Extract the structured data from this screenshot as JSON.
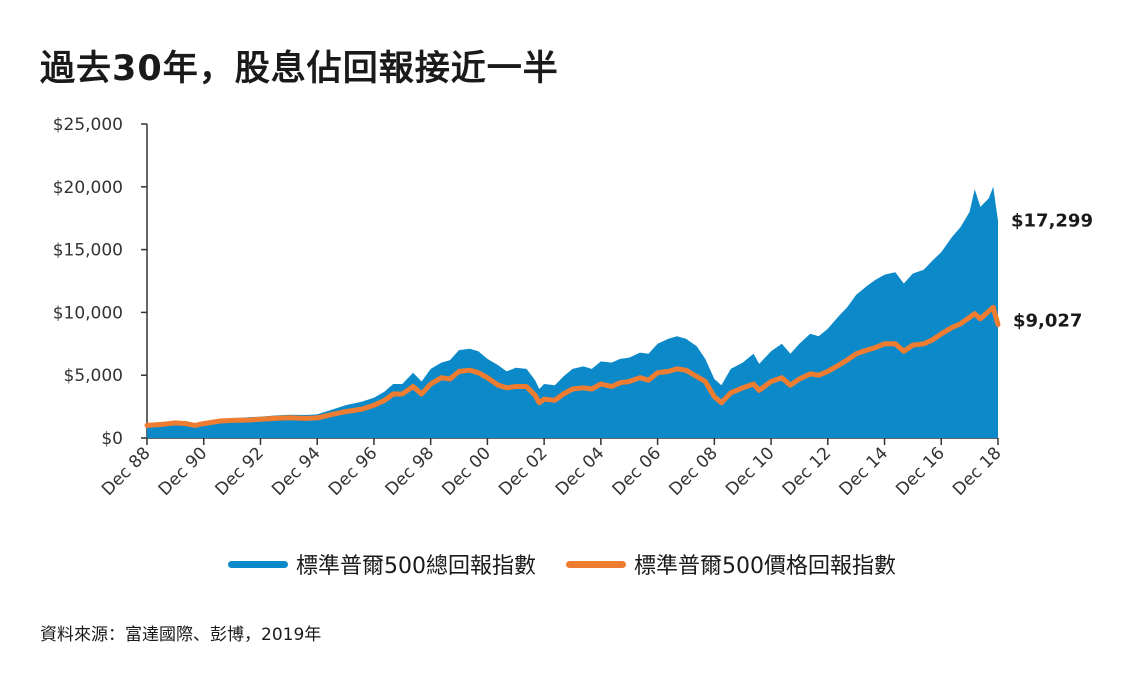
{
  "title": "過去30年，股息佔回報接近一半",
  "source": "資料來源：富達國際、彭博，2019年",
  "colors": {
    "total_return": "#0c89c9",
    "price_return": "#ee7d31",
    "axis": "#333333"
  },
  "legend": {
    "total_return": "標準普爾500總回報指數",
    "price_return": "標準普爾500價格回報指數"
  },
  "chart_data": {
    "type": "area",
    "xlim": [
      1988.92,
      2018.92
    ],
    "ylim": [
      0,
      25000
    ],
    "x_ticks": [
      {
        "label": "Dec 88",
        "value": 1988.92
      },
      {
        "label": "Dec 90",
        "value": 1990.92
      },
      {
        "label": "Dec 92",
        "value": 1992.92
      },
      {
        "label": "Dec 94",
        "value": 1994.92
      },
      {
        "label": "Dec 96",
        "value": 1996.92
      },
      {
        "label": "Dec 98",
        "value": 1998.92
      },
      {
        "label": "Dec 00",
        "value": 2000.92
      },
      {
        "label": "Dec 02",
        "value": 2002.92
      },
      {
        "label": "Dec 04",
        "value": 2004.92
      },
      {
        "label": "Dec 06",
        "value": 2006.92
      },
      {
        "label": "Dec 08",
        "value": 2008.92
      },
      {
        "label": "Dec 10",
        "value": 2010.92
      },
      {
        "label": "Dec 12",
        "value": 2012.92
      },
      {
        "label": "Dec 14",
        "value": 2014.92
      },
      {
        "label": "Dec 16",
        "value": 2016.92
      },
      {
        "label": "Dec 18",
        "value": 2018.92
      }
    ],
    "y_ticks": [
      {
        "label": "$0",
        "value": 0
      },
      {
        "label": "$5,000",
        "value": 5000
      },
      {
        "label": "$10,000",
        "value": 10000
      },
      {
        "label": "$15,000",
        "value": 15000
      },
      {
        "label": "$20,000",
        "value": 20000
      },
      {
        "label": "$25,000",
        "value": 25000
      }
    ],
    "series": [
      {
        "name": "標準普爾500總回報指數",
        "type": "area",
        "end_label": "$17,299",
        "points": [
          [
            1988.92,
            1000
          ],
          [
            1989.5,
            1150
          ],
          [
            1989.92,
            1300
          ],
          [
            1990.3,
            1250
          ],
          [
            1990.6,
            1080
          ],
          [
            1990.92,
            1250
          ],
          [
            1991.5,
            1500
          ],
          [
            1991.92,
            1580
          ],
          [
            1992.5,
            1650
          ],
          [
            1992.92,
            1700
          ],
          [
            1993.5,
            1800
          ],
          [
            1993.92,
            1850
          ],
          [
            1994.5,
            1830
          ],
          [
            1994.92,
            1880
          ],
          [
            1995.5,
            2300
          ],
          [
            1995.92,
            2600
          ],
          [
            1996.5,
            2900
          ],
          [
            1996.92,
            3200
          ],
          [
            1997.3,
            3700
          ],
          [
            1997.6,
            4300
          ],
          [
            1997.92,
            4300
          ],
          [
            1998.3,
            5200
          ],
          [
            1998.6,
            4500
          ],
          [
            1998.92,
            5500
          ],
          [
            1999.3,
            6000
          ],
          [
            1999.6,
            6200
          ],
          [
            1999.92,
            7000
          ],
          [
            2000.3,
            7100
          ],
          [
            2000.6,
            6900
          ],
          [
            2000.92,
            6300
          ],
          [
            2001.3,
            5800
          ],
          [
            2001.6,
            5300
          ],
          [
            2001.92,
            5600
          ],
          [
            2002.3,
            5500
          ],
          [
            2002.6,
            4600
          ],
          [
            2002.75,
            3900
          ],
          [
            2002.92,
            4300
          ],
          [
            2003.3,
            4200
          ],
          [
            2003.6,
            4900
          ],
          [
            2003.92,
            5500
          ],
          [
            2004.3,
            5700
          ],
          [
            2004.6,
            5500
          ],
          [
            2004.92,
            6100
          ],
          [
            2005.3,
            6000
          ],
          [
            2005.6,
            6300
          ],
          [
            2005.92,
            6400
          ],
          [
            2006.3,
            6800
          ],
          [
            2006.6,
            6700
          ],
          [
            2006.92,
            7500
          ],
          [
            2007.3,
            7900
          ],
          [
            2007.6,
            8100
          ],
          [
            2007.92,
            7900
          ],
          [
            2008.3,
            7300
          ],
          [
            2008.6,
            6300
          ],
          [
            2008.92,
            4700
          ],
          [
            2009.17,
            4200
          ],
          [
            2009.5,
            5500
          ],
          [
            2009.92,
            6000
          ],
          [
            2010.3,
            6700
          ],
          [
            2010.5,
            5900
          ],
          [
            2010.92,
            6900
          ],
          [
            2011.3,
            7500
          ],
          [
            2011.6,
            6700
          ],
          [
            2011.92,
            7500
          ],
          [
            2012.3,
            8300
          ],
          [
            2012.6,
            8100
          ],
          [
            2012.92,
            8700
          ],
          [
            2013.3,
            9700
          ],
          [
            2013.6,
            10400
          ],
          [
            2013.92,
            11400
          ],
          [
            2014.3,
            12100
          ],
          [
            2014.6,
            12600
          ],
          [
            2014.92,
            13000
          ],
          [
            2015.3,
            13200
          ],
          [
            2015.6,
            12300
          ],
          [
            2015.92,
            13100
          ],
          [
            2016.3,
            13400
          ],
          [
            2016.6,
            14100
          ],
          [
            2016.92,
            14800
          ],
          [
            2017.3,
            16000
          ],
          [
            2017.6,
            16800
          ],
          [
            2017.92,
            18000
          ],
          [
            2018.1,
            19800
          ],
          [
            2018.3,
            18400
          ],
          [
            2018.6,
            19100
          ],
          [
            2018.75,
            20000
          ],
          [
            2018.92,
            17299
          ]
        ]
      },
      {
        "name": "標準普爾500價格回報指數",
        "type": "line",
        "end_label": "$9,027",
        "points": [
          [
            1988.92,
            1000
          ],
          [
            1989.5,
            1100
          ],
          [
            1989.92,
            1200
          ],
          [
            1990.3,
            1150
          ],
          [
            1990.6,
            1000
          ],
          [
            1990.92,
            1150
          ],
          [
            1991.5,
            1350
          ],
          [
            1991.92,
            1400
          ],
          [
            1992.5,
            1430
          ],
          [
            1992.92,
            1500
          ],
          [
            1993.5,
            1580
          ],
          [
            1993.92,
            1620
          ],
          [
            1994.5,
            1560
          ],
          [
            1994.92,
            1600
          ],
          [
            1995.5,
            1900
          ],
          [
            1995.92,
            2100
          ],
          [
            1996.5,
            2300
          ],
          [
            1996.92,
            2600
          ],
          [
            1997.3,
            3000
          ],
          [
            1997.6,
            3500
          ],
          [
            1997.92,
            3500
          ],
          [
            1998.3,
            4100
          ],
          [
            1998.6,
            3500
          ],
          [
            1998.92,
            4300
          ],
          [
            1999.3,
            4800
          ],
          [
            1999.6,
            4700
          ],
          [
            1999.92,
            5300
          ],
          [
            2000.3,
            5400
          ],
          [
            2000.6,
            5200
          ],
          [
            2000.92,
            4800
          ],
          [
            2001.3,
            4200
          ],
          [
            2001.6,
            4000
          ],
          [
            2001.92,
            4100
          ],
          [
            2002.3,
            4100
          ],
          [
            2002.6,
            3400
          ],
          [
            2002.75,
            2800
          ],
          [
            2002.92,
            3100
          ],
          [
            2003.3,
            3000
          ],
          [
            2003.6,
            3500
          ],
          [
            2003.92,
            3900
          ],
          [
            2004.3,
            4000
          ],
          [
            2004.6,
            3900
          ],
          [
            2004.92,
            4300
          ],
          [
            2005.3,
            4100
          ],
          [
            2005.6,
            4400
          ],
          [
            2005.92,
            4500
          ],
          [
            2006.3,
            4800
          ],
          [
            2006.6,
            4600
          ],
          [
            2006.92,
            5200
          ],
          [
            2007.3,
            5300
          ],
          [
            2007.6,
            5500
          ],
          [
            2007.92,
            5400
          ],
          [
            2008.3,
            4900
          ],
          [
            2008.6,
            4500
          ],
          [
            2008.92,
            3300
          ],
          [
            2009.17,
            2800
          ],
          [
            2009.5,
            3600
          ],
          [
            2009.92,
            4000
          ],
          [
            2010.3,
            4300
          ],
          [
            2010.5,
            3800
          ],
          [
            2010.92,
            4500
          ],
          [
            2011.3,
            4800
          ],
          [
            2011.6,
            4200
          ],
          [
            2011.92,
            4700
          ],
          [
            2012.3,
            5100
          ],
          [
            2012.6,
            5000
          ],
          [
            2012.92,
            5300
          ],
          [
            2013.3,
            5800
          ],
          [
            2013.6,
            6200
          ],
          [
            2013.92,
            6700
          ],
          [
            2014.3,
            7000
          ],
          [
            2014.6,
            7200
          ],
          [
            2014.92,
            7500
          ],
          [
            2015.3,
            7500
          ],
          [
            2015.6,
            6900
          ],
          [
            2015.92,
            7400
          ],
          [
            2016.3,
            7500
          ],
          [
            2016.6,
            7800
          ],
          [
            2016.92,
            8300
          ],
          [
            2017.3,
            8800
          ],
          [
            2017.6,
            9100
          ],
          [
            2017.92,
            9600
          ],
          [
            2018.1,
            9900
          ],
          [
            2018.3,
            9500
          ],
          [
            2018.6,
            10100
          ],
          [
            2018.75,
            10400
          ],
          [
            2018.92,
            9027
          ]
        ]
      }
    ]
  }
}
